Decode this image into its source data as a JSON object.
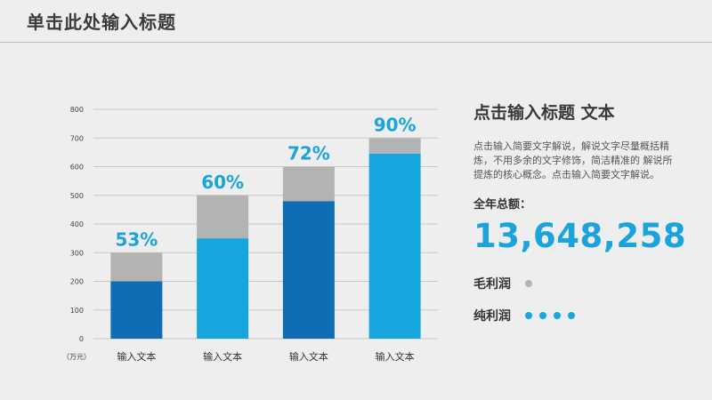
{
  "header": {
    "title": "单击此处输入标题"
  },
  "chart_data": {
    "type": "bar",
    "stacked": true,
    "categories": [
      "输入文本",
      "输入文本",
      "输入文本",
      "输入文本"
    ],
    "unit_label": "（万元）",
    "ylim": [
      0,
      800
    ],
    "yticks": [
      0,
      100,
      200,
      300,
      400,
      500,
      600,
      700,
      800
    ],
    "grid": true,
    "series": [
      {
        "values": [
          200,
          350,
          480,
          645
        ],
        "colors": [
          "#0f6db5",
          "#15a6e0",
          "#0f6db5",
          "#15a6e0"
        ]
      },
      {
        "values": [
          100,
          150,
          120,
          55
        ],
        "color": "#b3b3b3"
      }
    ],
    "totals": [
      300,
      500,
      600,
      700
    ],
    "data_labels": [
      "53%",
      "60%",
      "72%",
      "90%"
    ]
  },
  "side": {
    "title": "点击输入标题 文本",
    "desc": "点击输入简要文字解说，解说文字尽量概括精炼，不用多余的文字修饰，简洁精准的 解说所提炼的核心概念。点击输入简要文字解说。",
    "total_label": "全年总额：",
    "total_value": "13,648,258",
    "legend": [
      {
        "label": "毛利润",
        "dot_count": 1,
        "color": "#b3b3b3"
      },
      {
        "label": "纯利润",
        "dot_count": 4,
        "color": "#15a6e0"
      }
    ]
  }
}
